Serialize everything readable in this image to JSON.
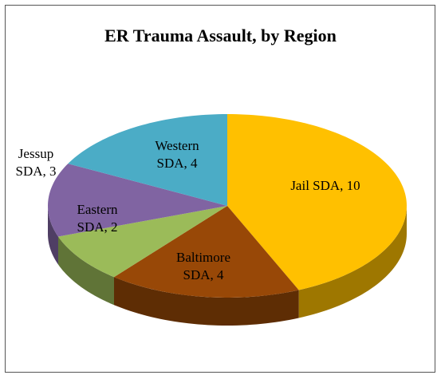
{
  "chart_data": {
    "type": "pie3d",
    "title": "ER Trauma Assault, by Region",
    "values": [
      10,
      4,
      2,
      3,
      4
    ],
    "value_labels": [
      "Jail SDA, 10",
      "Baltimore SDA, 4",
      "Eastern SDA, 2",
      "Jessup SDA, 3",
      "Western SDA, 4"
    ],
    "colors": [
      "#FFC000",
      "#984807",
      "#9BBB59",
      "#8064A2",
      "#4BACC6"
    ]
  }
}
